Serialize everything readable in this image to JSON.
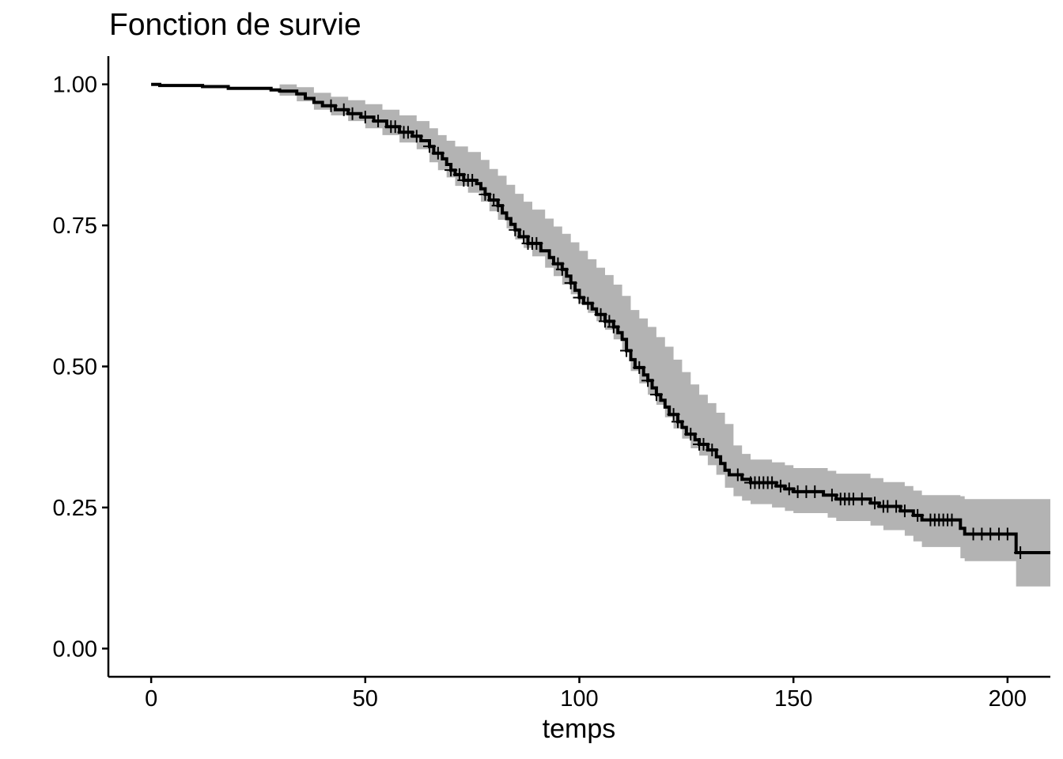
{
  "chart_data": {
    "type": "line",
    "subtype": "kaplan-meier step curve with confidence band",
    "title": "Fonction de survie",
    "xlabel": "temps",
    "ylabel": "",
    "xlim": [
      -10,
      210
    ],
    "ylim": [
      -0.05,
      1.05
    ],
    "x_ticks": [
      0,
      50,
      100,
      150,
      200
    ],
    "x_tick_labels": [
      "0",
      "50",
      "100",
      "150",
      "200"
    ],
    "y_ticks": [
      0,
      0.25,
      0.5,
      0.75,
      1
    ],
    "y_tick_labels": [
      "0.00",
      "0.25",
      "0.50",
      "0.75",
      "1.00"
    ],
    "grid": false,
    "legend": "none",
    "colors": {
      "curve": "#000000",
      "band": "#b3b3b3"
    },
    "series": [
      {
        "points": [
          [
            0,
            1.0
          ],
          [
            2,
            0.998
          ],
          [
            12,
            0.996
          ],
          [
            18,
            0.993
          ],
          [
            28,
            0.99
          ],
          [
            30,
            0.988
          ],
          [
            34,
            0.983
          ],
          [
            36,
            0.975
          ],
          [
            38,
            0.968
          ],
          [
            40,
            0.962
          ],
          [
            43,
            0.955
          ],
          [
            46,
            0.948
          ],
          [
            49,
            0.942
          ],
          [
            52,
            0.935
          ],
          [
            55,
            0.925
          ],
          [
            58,
            0.915
          ],
          [
            61,
            0.908
          ],
          [
            63,
            0.9
          ],
          [
            65,
            0.89
          ],
          [
            66,
            0.878
          ],
          [
            68,
            0.868
          ],
          [
            69,
            0.858
          ],
          [
            70,
            0.848
          ],
          [
            71,
            0.84
          ],
          [
            73,
            0.83
          ],
          [
            76,
            0.824
          ],
          [
            77,
            0.815
          ],
          [
            78,
            0.805
          ],
          [
            79,
            0.795
          ],
          [
            81,
            0.785
          ],
          [
            82,
            0.772
          ],
          [
            83,
            0.762
          ],
          [
            84,
            0.752
          ],
          [
            85,
            0.742
          ],
          [
            86,
            0.73
          ],
          [
            88,
            0.718
          ],
          [
            91,
            0.705
          ],
          [
            93,
            0.693
          ],
          [
            94,
            0.682
          ],
          [
            96,
            0.672
          ],
          [
            97,
            0.66
          ],
          [
            98,
            0.648
          ],
          [
            99,
            0.635
          ],
          [
            100,
            0.622
          ],
          [
            101,
            0.612
          ],
          [
            103,
            0.602
          ],
          [
            104,
            0.592
          ],
          [
            106,
            0.58
          ],
          [
            108,
            0.57
          ],
          [
            109,
            0.56
          ],
          [
            110,
            0.548
          ],
          [
            111,
            0.528
          ],
          [
            112,
            0.512
          ],
          [
            113,
            0.498
          ],
          [
            115,
            0.485
          ],
          [
            116,
            0.475
          ],
          [
            117,
            0.462
          ],
          [
            118,
            0.45
          ],
          [
            119,
            0.44
          ],
          [
            120,
            0.428
          ],
          [
            121,
            0.415
          ],
          [
            123,
            0.402
          ],
          [
            124,
            0.392
          ],
          [
            125,
            0.38
          ],
          [
            127,
            0.37
          ],
          [
            128,
            0.362
          ],
          [
            130,
            0.352
          ],
          [
            132,
            0.34
          ],
          [
            133,
            0.328
          ],
          [
            134,
            0.316
          ],
          [
            135,
            0.308
          ],
          [
            138,
            0.3
          ],
          [
            140,
            0.294
          ],
          [
            146,
            0.288
          ],
          [
            148,
            0.283
          ],
          [
            150,
            0.278
          ],
          [
            157,
            0.272
          ],
          [
            160,
            0.265
          ],
          [
            168,
            0.258
          ],
          [
            170,
            0.252
          ],
          [
            175,
            0.244
          ],
          [
            178,
            0.236
          ],
          [
            180,
            0.228
          ],
          [
            189,
            0.213
          ],
          [
            190,
            0.203
          ],
          [
            202,
            0.17
          ],
          [
            210,
            0.17
          ]
        ],
        "band_upper": [
          [
            0,
            1.0
          ],
          [
            30,
            1.0
          ],
          [
            34,
            0.995
          ],
          [
            38,
            0.985
          ],
          [
            42,
            0.978
          ],
          [
            46,
            0.972
          ],
          [
            50,
            0.965
          ],
          [
            54,
            0.955
          ],
          [
            58,
            0.945
          ],
          [
            62,
            0.935
          ],
          [
            65,
            0.922
          ],
          [
            67,
            0.91
          ],
          [
            69,
            0.9
          ],
          [
            71,
            0.89
          ],
          [
            74,
            0.88
          ],
          [
            77,
            0.866
          ],
          [
            79,
            0.85
          ],
          [
            81,
            0.838
          ],
          [
            83,
            0.822
          ],
          [
            85,
            0.806
          ],
          [
            87,
            0.792
          ],
          [
            89,
            0.778
          ],
          [
            92,
            0.762
          ],
          [
            94,
            0.748
          ],
          [
            96,
            0.735
          ],
          [
            98,
            0.72
          ],
          [
            100,
            0.705
          ],
          [
            102,
            0.69
          ],
          [
            104,
            0.675
          ],
          [
            106,
            0.662
          ],
          [
            108,
            0.645
          ],
          [
            110,
            0.625
          ],
          [
            112,
            0.6
          ],
          [
            114,
            0.585
          ],
          [
            116,
            0.57
          ],
          [
            118,
            0.552
          ],
          [
            120,
            0.535
          ],
          [
            122,
            0.512
          ],
          [
            124,
            0.49
          ],
          [
            126,
            0.468
          ],
          [
            128,
            0.45
          ],
          [
            130,
            0.435
          ],
          [
            132,
            0.418
          ],
          [
            134,
            0.398
          ],
          [
            136,
            0.36
          ],
          [
            138,
            0.345
          ],
          [
            140,
            0.335
          ],
          [
            145,
            0.33
          ],
          [
            148,
            0.325
          ],
          [
            150,
            0.32
          ],
          [
            158,
            0.315
          ],
          [
            160,
            0.31
          ],
          [
            168,
            0.302
          ],
          [
            171,
            0.295
          ],
          [
            176,
            0.288
          ],
          [
            178,
            0.28
          ],
          [
            180,
            0.272
          ],
          [
            189,
            0.27
          ],
          [
            190,
            0.265
          ],
          [
            210,
            0.265
          ]
        ],
        "band_lower": [
          [
            0,
            1.0
          ],
          [
            30,
            0.98
          ],
          [
            34,
            0.97
          ],
          [
            38,
            0.955
          ],
          [
            42,
            0.945
          ],
          [
            46,
            0.935
          ],
          [
            50,
            0.922
          ],
          [
            54,
            0.91
          ],
          [
            58,
            0.897
          ],
          [
            62,
            0.885
          ],
          [
            65,
            0.862
          ],
          [
            67,
            0.848
          ],
          [
            69,
            0.835
          ],
          [
            71,
            0.82
          ],
          [
            74,
            0.808
          ],
          [
            77,
            0.792
          ],
          [
            79,
            0.775
          ],
          [
            81,
            0.76
          ],
          [
            83,
            0.745
          ],
          [
            85,
            0.725
          ],
          [
            87,
            0.71
          ],
          [
            89,
            0.695
          ],
          [
            92,
            0.675
          ],
          [
            94,
            0.66
          ],
          [
            96,
            0.645
          ],
          [
            98,
            0.628
          ],
          [
            100,
            0.612
          ],
          [
            102,
            0.595
          ],
          [
            104,
            0.58
          ],
          [
            106,
            0.565
          ],
          [
            108,
            0.548
          ],
          [
            110,
            0.53
          ],
          [
            112,
            0.492
          ],
          [
            114,
            0.47
          ],
          [
            116,
            0.45
          ],
          [
            118,
            0.432
          ],
          [
            120,
            0.41
          ],
          [
            122,
            0.39
          ],
          [
            124,
            0.372
          ],
          [
            126,
            0.355
          ],
          [
            128,
            0.342
          ],
          [
            130,
            0.325
          ],
          [
            132,
            0.308
          ],
          [
            134,
            0.285
          ],
          [
            136,
            0.27
          ],
          [
            138,
            0.262
          ],
          [
            140,
            0.256
          ],
          [
            145,
            0.25
          ],
          [
            148,
            0.244
          ],
          [
            150,
            0.24
          ],
          [
            158,
            0.232
          ],
          [
            160,
            0.226
          ],
          [
            168,
            0.218
          ],
          [
            171,
            0.21
          ],
          [
            176,
            0.2
          ],
          [
            178,
            0.19
          ],
          [
            180,
            0.18
          ],
          [
            189,
            0.16
          ],
          [
            190,
            0.155
          ],
          [
            202,
            0.11
          ],
          [
            210,
            0.11
          ]
        ],
        "censor_times": [
          42,
          45,
          47,
          50,
          53,
          56,
          57,
          59,
          60,
          62,
          65,
          67,
          70,
          72,
          73,
          74,
          75,
          78,
          80,
          81,
          85,
          87,
          88,
          89,
          90,
          95,
          96,
          98,
          100,
          102,
          105,
          106,
          107,
          108,
          111,
          114,
          116,
          118,
          122,
          123,
          126,
          128,
          129,
          131,
          137,
          140,
          141,
          142,
          143,
          144,
          145,
          147,
          149,
          151,
          153,
          155,
          159,
          161,
          162,
          163,
          164,
          166,
          169,
          171,
          172,
          174,
          176,
          179,
          182,
          183,
          184,
          185,
          186,
          187,
          192,
          194,
          196,
          198,
          200,
          203
        ]
      }
    ]
  }
}
